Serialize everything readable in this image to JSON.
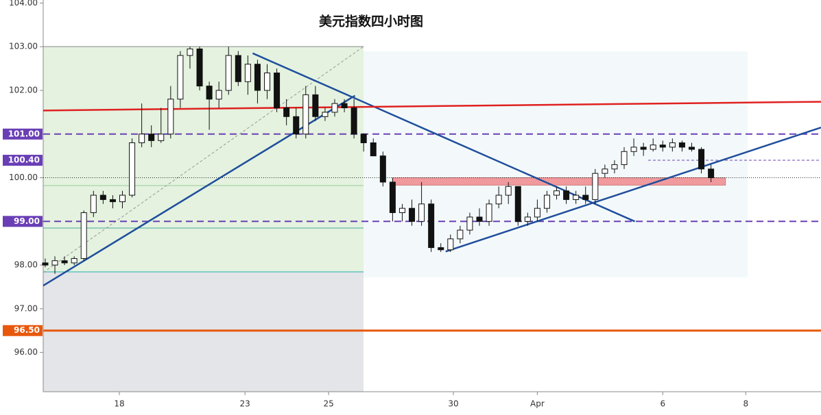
{
  "chart_data": {
    "type": "candlestick",
    "title": "美元指数四小时图",
    "open": [
      98.05,
      98.0,
      98.1,
      98.05,
      98.15,
      99.2,
      99.6,
      99.5,
      99.45,
      99.6,
      100.8,
      101.0,
      100.85,
      101.0,
      101.8,
      102.8,
      102.95,
      102.1,
      101.8,
      102.0,
      102.8,
      102.2,
      102.6,
      102.0,
      102.4,
      101.6,
      101.4,
      101.0,
      101.9,
      101.4,
      101.5,
      101.7,
      101.6,
      101.0,
      100.8,
      100.5,
      99.9,
      99.2,
      99.3,
      99.0,
      99.4,
      98.4,
      98.35,
      98.6,
      98.8,
      99.1,
      99.0,
      99.4,
      99.6,
      99.8,
      99.0,
      99.1,
      99.3,
      99.6,
      99.7,
      99.5,
      99.6,
      99.5,
      100.1,
      100.2,
      100.3,
      100.6,
      100.7,
      100.65,
      100.75,
      100.7,
      100.8,
      100.7,
      100.65,
      100.2
    ],
    "high": [
      98.15,
      98.2,
      98.2,
      98.2,
      99.25,
      99.7,
      99.7,
      99.6,
      99.7,
      100.9,
      101.7,
      101.2,
      101.6,
      102.1,
      102.9,
      103.0,
      103.0,
      102.2,
      102.2,
      103.0,
      102.9,
      102.8,
      102.7,
      102.6,
      102.5,
      101.8,
      101.6,
      102.1,
      102.1,
      101.6,
      101.8,
      101.8,
      101.8,
      101.0,
      100.9,
      100.6,
      100.0,
      99.4,
      99.5,
      99.9,
      99.5,
      98.5,
      98.7,
      98.9,
      99.2,
      99.3,
      99.5,
      99.8,
      99.9,
      99.8,
      99.2,
      99.5,
      99.7,
      99.8,
      99.8,
      99.7,
      99.8,
      100.2,
      100.3,
      100.4,
      100.7,
      100.9,
      100.8,
      100.9,
      100.85,
      100.9,
      100.85,
      100.8,
      100.7,
      100.3
    ],
    "low": [
      97.95,
      97.8,
      98.0,
      98.0,
      98.1,
      99.1,
      99.4,
      99.3,
      99.3,
      99.55,
      100.7,
      100.7,
      100.8,
      100.9,
      101.6,
      102.5,
      102.0,
      101.1,
      101.6,
      101.9,
      102.1,
      101.9,
      101.7,
      101.8,
      101.5,
      101.2,
      100.9,
      100.9,
      101.3,
      101.3,
      101.4,
      101.5,
      100.9,
      100.6,
      100.5,
      99.8,
      99.0,
      99.0,
      98.9,
      98.9,
      98.3,
      98.3,
      98.3,
      98.5,
      98.7,
      98.9,
      98.9,
      99.3,
      99.4,
      98.9,
      98.9,
      99.0,
      99.2,
      99.5,
      99.4,
      99.4,
      99.4,
      99.4,
      100.0,
      100.1,
      100.2,
      100.5,
      100.5,
      100.6,
      100.6,
      100.6,
      100.6,
      100.6,
      100.1,
      99.9
    ],
    "close": [
      98.0,
      98.1,
      98.05,
      98.15,
      99.2,
      99.6,
      99.5,
      99.45,
      99.6,
      100.8,
      101.0,
      100.85,
      101.0,
      101.8,
      102.8,
      102.95,
      102.1,
      101.8,
      102.0,
      102.8,
      102.2,
      102.6,
      102.0,
      102.4,
      101.6,
      101.4,
      101.0,
      101.9,
      101.4,
      101.5,
      101.7,
      101.6,
      101.0,
      100.8,
      100.5,
      99.9,
      99.2,
      99.3,
      99.0,
      99.4,
      98.4,
      98.35,
      98.6,
      98.8,
      99.1,
      99.0,
      99.4,
      99.6,
      99.8,
      99.0,
      99.1,
      99.3,
      99.6,
      99.7,
      99.5,
      99.6,
      99.5,
      100.1,
      100.2,
      100.3,
      100.6,
      100.7,
      100.65,
      100.75,
      100.7,
      100.8,
      100.7,
      100.65,
      100.2,
      100.0
    ],
    "xlim": [
      -0.21,
      80.4
    ],
    "ylim": [
      95.1,
      104.07
    ],
    "xticks": [
      {
        "value": 7.68,
        "label": "18"
      },
      {
        "value": 20.7,
        "label": "23"
      },
      {
        "value": 29.37,
        "label": "25"
      },
      {
        "value": 42.3,
        "label": "30"
      },
      {
        "value": 51.0,
        "label": "Apr"
      },
      {
        "value": 64.0,
        "label": "6"
      },
      {
        "value": 72.6,
        "label": "8"
      }
    ],
    "yticks": [
      {
        "value": 96,
        "label": "96.00"
      },
      {
        "value": 97,
        "label": "97.00"
      },
      {
        "value": 98,
        "label": "98.00"
      },
      {
        "value": 99,
        "label": "99.00"
      },
      {
        "value": 100,
        "label": "100.00"
      },
      {
        "value": 101,
        "label": "101.00"
      },
      {
        "value": 102,
        "label": "102.00"
      },
      {
        "value": 103,
        "label": "103.00"
      },
      {
        "value": 104,
        "label": "104.00"
      }
    ],
    "levels": [
      {
        "value": 101,
        "label": "101.00",
        "color": "#6a3fb5",
        "style": "dashed"
      },
      {
        "value": 100.4,
        "label": "100.40",
        "color": "#6a3fb5",
        "style": "short"
      },
      {
        "value": 99,
        "label": "99.00",
        "color": "#6a3fb5",
        "style": "dashed"
      },
      {
        "value": 96.5,
        "label": "96.50",
        "color": "#e8580c",
        "style": "solid"
      }
    ],
    "trendlines": [
      {
        "x": [
          -0.21,
          32.1
        ],
        "y": [
          97.53,
          101.88
        ],
        "color": "#1f4e9c"
      },
      {
        "x": [
          21.5,
          61.1
        ],
        "y": [
          102.85,
          99.0
        ],
        "color": "#1f4e9c"
      },
      {
        "x": [
          41.5,
          80.4
        ],
        "y": [
          98.31,
          101.15
        ],
        "color": "#1f4e9c"
      },
      {
        "x": [
          -0.21,
          80.4
        ],
        "y": [
          101.54,
          101.74
        ],
        "color": "#e02020"
      }
    ],
    "zone": {
      "x": [
        36.0,
        70.5
      ],
      "y": [
        99.83,
        100.0
      ],
      "color": "#f08a8f"
    }
  }
}
